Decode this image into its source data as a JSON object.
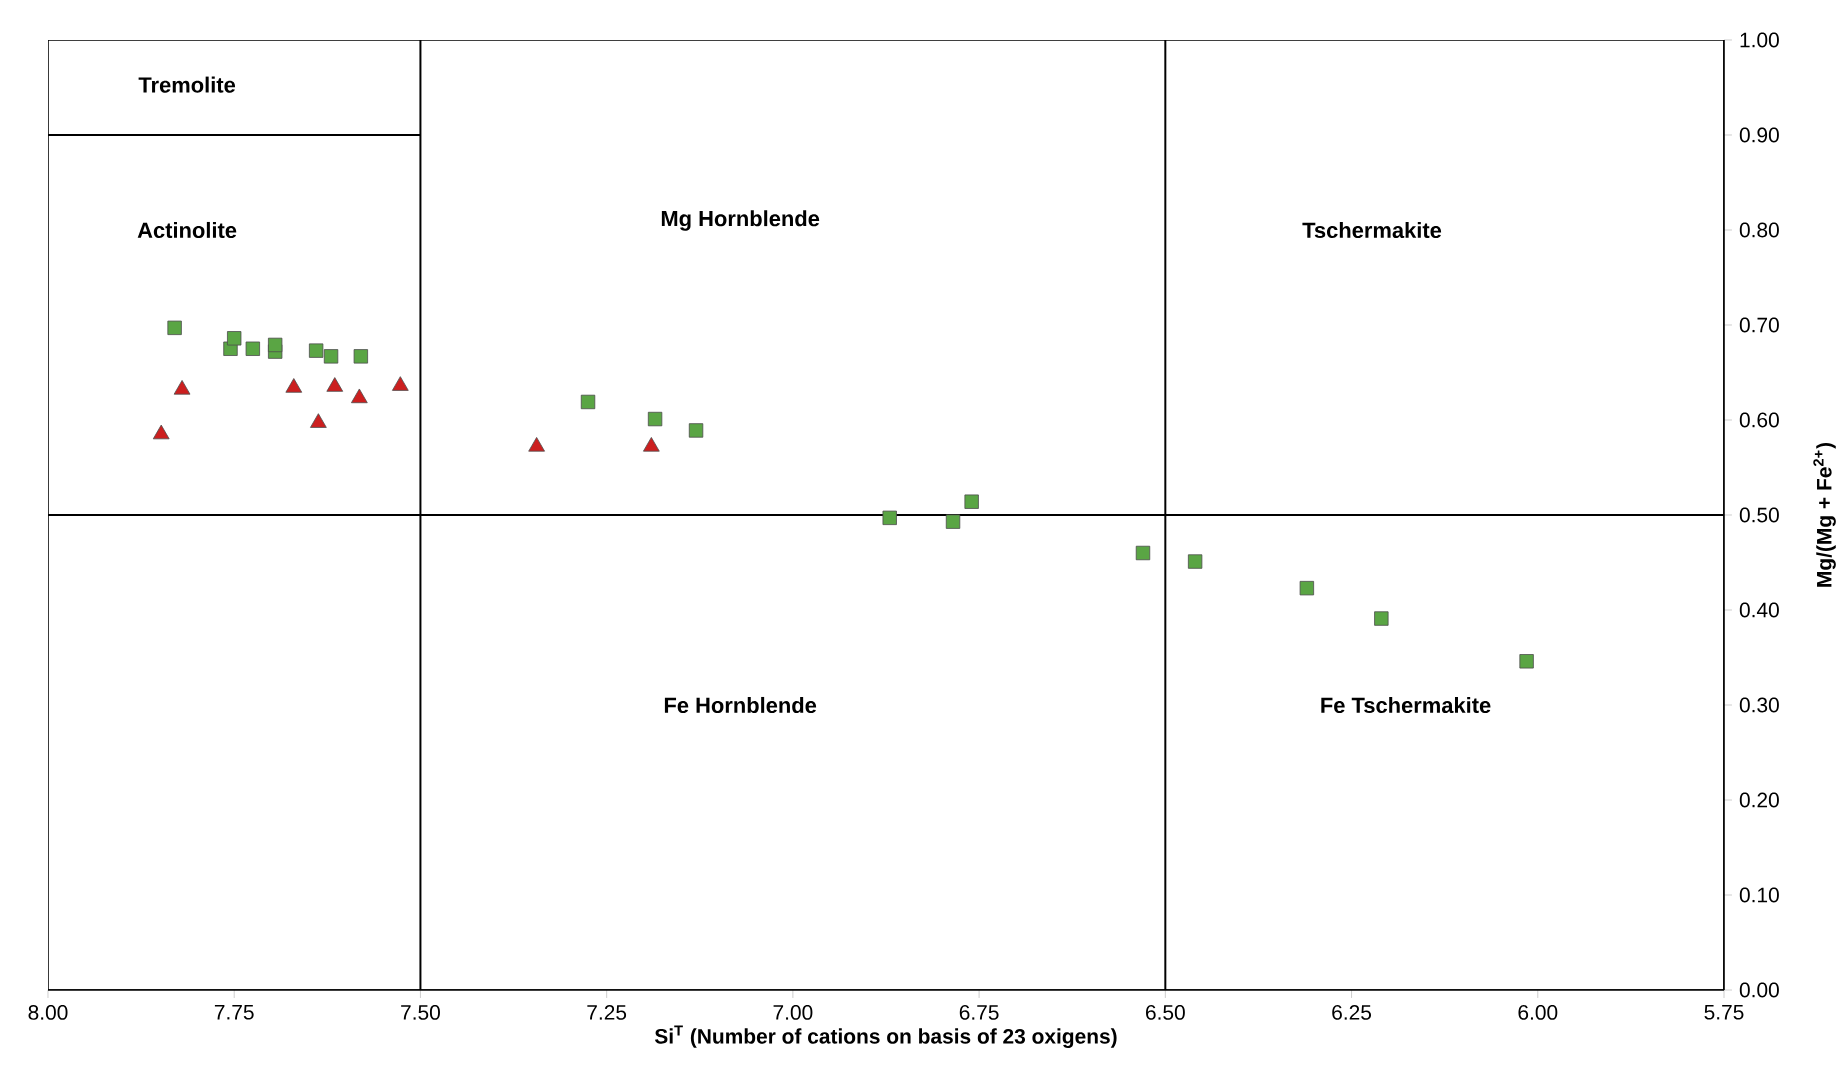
{
  "chart_data": {
    "type": "scatter",
    "xlabel": "**Si$^{T}$ (Number of cations on basis of 23 oxigens)**",
    "ylabel": "**Mg/(Mg + Fe$^{2+}$)**",
    "xlim": [
      8,
      5.75
    ],
    "ylim": [
      0,
      1
    ],
    "xticks": [
      {
        "value": 8,
        "label": "8.00"
      },
      {
        "value": 7.75,
        "label": "7.75"
      },
      {
        "value": 7.5,
        "label": "7.50"
      },
      {
        "value": 7.25,
        "label": "7.25"
      },
      {
        "value": 7,
        "label": "7.00"
      },
      {
        "value": 6.75,
        "label": "6.75"
      },
      {
        "value": 6.5,
        "label": "6.50"
      },
      {
        "value": 6.25,
        "label": "6.25"
      },
      {
        "value": 6,
        "label": "6.00"
      },
      {
        "value": 5.75,
        "label": "5.75"
      }
    ],
    "yticks": [
      {
        "value": 0,
        "label": "0.00"
      },
      {
        "value": 0.1,
        "label": "0.10"
      },
      {
        "value": 0.2,
        "label": "0.20"
      },
      {
        "value": 0.3,
        "label": "0.30"
      },
      {
        "value": 0.4,
        "label": "0.40"
      },
      {
        "value": 0.5,
        "label": "0.50"
      },
      {
        "value": 0.6,
        "label": "0.60"
      },
      {
        "value": 0.7,
        "label": "0.70"
      },
      {
        "value": 0.8,
        "label": "0.80"
      },
      {
        "value": 0.9,
        "label": "0.90"
      },
      {
        "value": 1,
        "label": "1.00"
      }
    ],
    "grid": false,
    "series": [
      {
        "color": "#5aa544",
        "marker": "square",
        "x": [
          7.83,
          7.755,
          7.75,
          7.725,
          7.695,
          7.695,
          7.64,
          7.62,
          7.58,
          7.275,
          7.185,
          7.13,
          6.87,
          6.785,
          6.76,
          6.53,
          6.46,
          6.31,
          6.21,
          6.015
        ],
        "values": [
          0.697,
          0.675,
          0.686,
          0.675,
          0.672,
          0.679,
          0.673,
          0.667,
          0.667,
          0.619,
          0.601,
          0.589,
          0.497,
          0.493,
          0.514,
          0.46,
          0.451,
          0.423,
          0.391,
          0.346
        ]
      },
      {
        "color": "#cc1f1f",
        "marker": "triangle",
        "x": [
          7.82,
          7.848,
          7.67,
          7.637,
          7.615,
          7.582,
          7.527,
          7.344,
          7.19
        ],
        "values": [
          0.632,
          0.585,
          0.634,
          0.597,
          0.635,
          0.623,
          0.636,
          0.572,
          0.572
        ]
      },
      {
        "type": "line",
        "color": "#000000",
        "marker": "none",
        "x": [
          8,
          7.5
        ],
        "values": [
          0.9,
          0.9
        ]
      }
    ],
    "ref_lines": [
      {
        "axis": "x",
        "value": 7.5,
        "color": "#000000"
      },
      {
        "axis": "x",
        "value": 6.5,
        "color": "#000000"
      },
      {
        "axis": "y",
        "value": 0.5,
        "color": "#000000"
      }
    ],
    "annotations": [
      "**Tremolite**",
      "**Actinolite**",
      "**Mg Hornblende**",
      "**Tschermakite**",
      "**Fe Hornblende**",
      "**Fe Tschermakite**"
    ]
  }
}
